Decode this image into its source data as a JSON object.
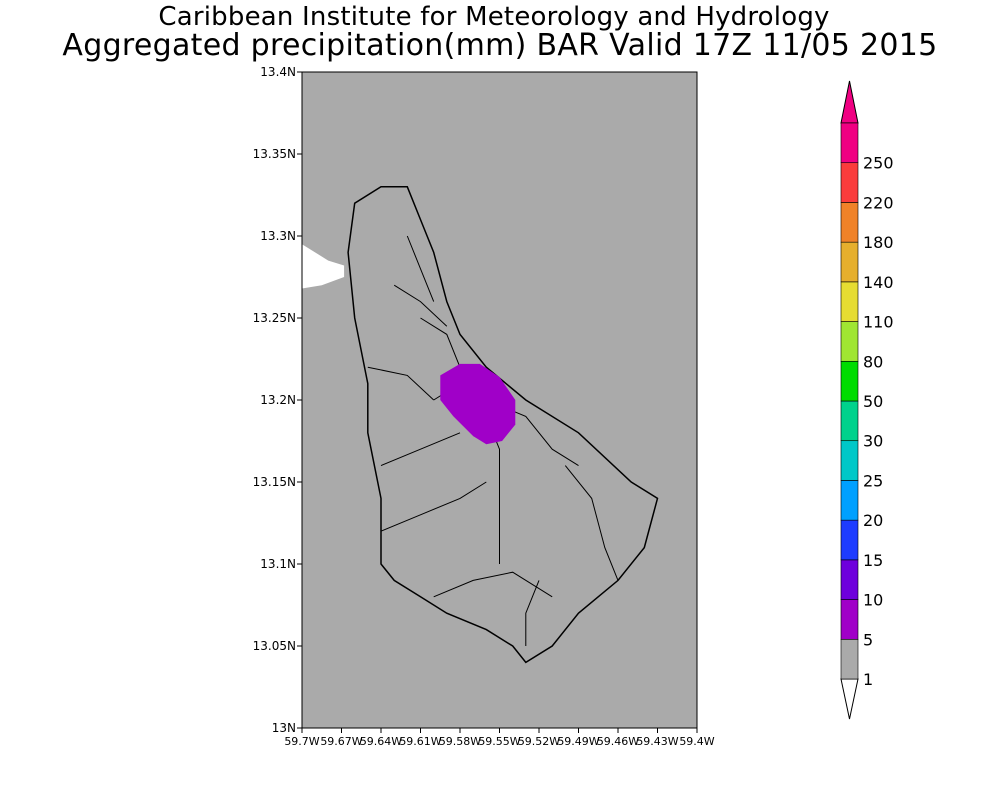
{
  "header": {
    "line1": "Caribbean Institute for Meteorology and Hydrology",
    "line2": "Aggregated precipitation(mm) BAR Valid 17Z 11/05 2015"
  },
  "map": {
    "lat_range": [
      13.0,
      13.4
    ],
    "lon_range": [
      -59.7,
      -59.4
    ],
    "lat_ticks": [
      {
        "value": 13.4,
        "label": "13.4N"
      },
      {
        "value": 13.35,
        "label": "13.35N"
      },
      {
        "value": 13.3,
        "label": "13.3N"
      },
      {
        "value": 13.25,
        "label": "13.25N"
      },
      {
        "value": 13.2,
        "label": "13.2N"
      },
      {
        "value": 13.15,
        "label": "13.15N"
      },
      {
        "value": 13.1,
        "label": "13.1N"
      },
      {
        "value": 13.05,
        "label": "13.05N"
      },
      {
        "value": 13.0,
        "label": "13N"
      }
    ],
    "lon_ticks": [
      {
        "value": -59.7,
        "label": "59.7W"
      },
      {
        "value": -59.67,
        "label": "59.67W"
      },
      {
        "value": -59.64,
        "label": "59.64W"
      },
      {
        "value": -59.61,
        "label": "59.61W"
      },
      {
        "value": -59.58,
        "label": "59.58W"
      },
      {
        "value": -59.55,
        "label": "59.55W"
      },
      {
        "value": -59.52,
        "label": "59.52W"
      },
      {
        "value": -59.49,
        "label": "59.49W"
      },
      {
        "value": -59.46,
        "label": "59.46W"
      },
      {
        "value": -59.43,
        "label": "59.43W"
      },
      {
        "value": -59.4,
        "label": "59.4W"
      }
    ],
    "background_color": "#aaaaaa",
    "coastline": [
      [
        -59.64,
        13.33
      ],
      [
        -59.62,
        13.33
      ],
      [
        -59.61,
        13.31
      ],
      [
        -59.6,
        13.29
      ],
      [
        -59.59,
        13.26
      ],
      [
        -59.58,
        13.24
      ],
      [
        -59.56,
        13.22
      ],
      [
        -59.53,
        13.2
      ],
      [
        -59.49,
        13.18
      ],
      [
        -59.45,
        13.15
      ],
      [
        -59.43,
        13.14
      ],
      [
        -59.44,
        13.11
      ],
      [
        -59.46,
        13.09
      ],
      [
        -59.49,
        13.07
      ],
      [
        -59.51,
        13.05
      ],
      [
        -59.53,
        13.04
      ],
      [
        -59.54,
        13.05
      ],
      [
        -59.56,
        13.06
      ],
      [
        -59.59,
        13.07
      ],
      [
        -59.61,
        13.08
      ],
      [
        -59.63,
        13.09
      ],
      [
        -59.64,
        13.1
      ],
      [
        -59.64,
        13.14
      ],
      [
        -59.65,
        13.18
      ],
      [
        -59.65,
        13.21
      ],
      [
        -59.66,
        13.25
      ],
      [
        -59.665,
        13.29
      ],
      [
        -59.66,
        13.32
      ]
    ],
    "rivers": [
      [
        [
          -59.575,
          13.2
        ],
        [
          -59.56,
          13.19
        ],
        [
          -59.55,
          13.17
        ],
        [
          -59.55,
          13.12
        ],
        [
          -59.55,
          13.1
        ]
      ],
      [
        [
          -59.64,
          13.12
        ],
        [
          -59.61,
          13.13
        ],
        [
          -59.58,
          13.14
        ],
        [
          -59.56,
          13.15
        ]
      ],
      [
        [
          -59.6,
          13.2
        ],
        [
          -59.58,
          13.21
        ],
        [
          -59.56,
          13.2
        ],
        [
          -59.54,
          13.19
        ]
      ],
      [
        [
          -59.61,
          13.25
        ],
        [
          -59.59,
          13.24
        ],
        [
          -59.58,
          13.22
        ]
      ],
      [
        [
          -59.62,
          13.3
        ],
        [
          -59.61,
          13.28
        ],
        [
          -59.6,
          13.26
        ]
      ],
      [
        [
          -59.5,
          13.16
        ],
        [
          -59.48,
          13.14
        ],
        [
          -59.47,
          13.11
        ],
        [
          -59.46,
          13.09
        ]
      ],
      [
        [
          -59.56,
          13.2
        ],
        [
          -59.53,
          13.19
        ],
        [
          -59.51,
          13.17
        ],
        [
          -59.49,
          13.16
        ]
      ],
      [
        [
          -59.6,
          13.08
        ],
        [
          -59.57,
          13.09
        ],
        [
          -59.54,
          13.095
        ],
        [
          -59.51,
          13.08
        ]
      ],
      [
        [
          -59.53,
          13.05
        ],
        [
          -59.53,
          13.07
        ],
        [
          -59.52,
          13.09
        ]
      ],
      [
        [
          -59.65,
          13.22
        ],
        [
          -59.62,
          13.215
        ],
        [
          -59.6,
          13.2
        ]
      ],
      [
        [
          -59.64,
          13.16
        ],
        [
          -59.61,
          13.17
        ],
        [
          -59.58,
          13.18
        ]
      ],
      [
        [
          -59.63,
          13.27
        ],
        [
          -59.61,
          13.26
        ],
        [
          -59.59,
          13.245
        ]
      ]
    ],
    "precip_area": {
      "range": "5-10",
      "color": "#a000c8",
      "outline": [
        [
          -59.595,
          13.215
        ],
        [
          -59.58,
          13.222
        ],
        [
          -59.565,
          13.222
        ],
        [
          -59.55,
          13.214
        ],
        [
          -59.538,
          13.2
        ],
        [
          -59.538,
          13.185
        ],
        [
          -59.548,
          13.175
        ],
        [
          -59.56,
          13.173
        ],
        [
          -59.57,
          13.178
        ],
        [
          -59.585,
          13.19
        ],
        [
          -59.595,
          13.2
        ]
      ]
    },
    "no_data_area": {
      "color": "#ffffff",
      "outline": [
        [
          -59.7,
          13.295
        ],
        [
          -59.68,
          13.285
        ],
        [
          -59.668,
          13.282
        ],
        [
          -59.668,
          13.275
        ],
        [
          -59.685,
          13.27
        ],
        [
          -59.7,
          13.268
        ]
      ]
    }
  },
  "legend": {
    "bins": [
      {
        "label": "1",
        "color": "#aaaaaa"
      },
      {
        "label": "5",
        "color": "#a000c8"
      },
      {
        "label": "10",
        "color": "#6e00dc"
      },
      {
        "label": "15",
        "color": "#1e3cff"
      },
      {
        "label": "20",
        "color": "#00a0ff"
      },
      {
        "label": "25",
        "color": "#00c8c8"
      },
      {
        "label": "30",
        "color": "#00d28c"
      },
      {
        "label": "50",
        "color": "#00dc00"
      },
      {
        "label": "80",
        "color": "#a0e632"
      },
      {
        "label": "110",
        "color": "#e6dc32"
      },
      {
        "label": "140",
        "color": "#e6af2d"
      },
      {
        "label": "180",
        "color": "#f08228"
      },
      {
        "label": "220",
        "color": "#fa3c3c"
      },
      {
        "label": "250",
        "color": "#f00082"
      }
    ],
    "below_color": "#ffffff",
    "above_color": "#f00082"
  }
}
